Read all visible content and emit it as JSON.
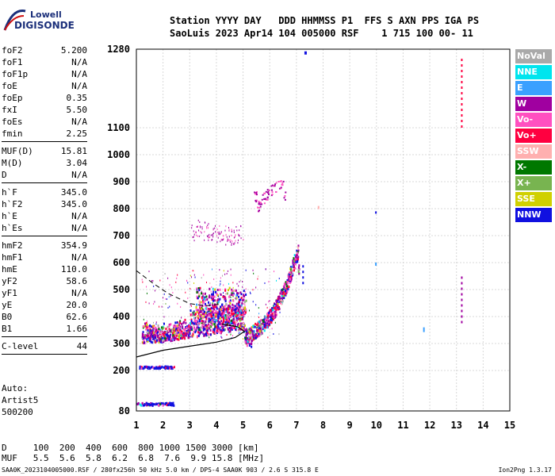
{
  "logo": {
    "line1": "Lowell",
    "line2": "DIGISONDE"
  },
  "header": {
    "labels": "Station YYYY DAY   DDD HHMMSS P1  FFS S AXN PPS IGA PS",
    "values": "SaoLuis 2023 Apr14 104 005000 RSF    1 715 100 00- 11"
  },
  "params": [
    {
      "k": "foF2",
      "v": "5.200"
    },
    {
      "k": "foF1",
      "v": "N/A"
    },
    {
      "k": "foF1p",
      "v": "N/A"
    },
    {
      "k": "foE",
      "v": "N/A"
    },
    {
      "k": "foEp",
      "v": "0.35"
    },
    {
      "k": "fxI",
      "v": "5.50"
    },
    {
      "k": "foEs",
      "v": "N/A"
    },
    {
      "k": "fmin",
      "v": "2.25"
    },
    {
      "sep": true
    },
    {
      "k": "MUF(D)",
      "v": "15.81"
    },
    {
      "k": "M(D)",
      "v": "3.04"
    },
    {
      "k": "D",
      "v": "N/A"
    },
    {
      "sep": true
    },
    {
      "k": "h`F",
      "v": "345.0"
    },
    {
      "k": "h`F2",
      "v": "345.0"
    },
    {
      "k": "h`E",
      "v": "N/A"
    },
    {
      "k": "h`Es",
      "v": "N/A"
    },
    {
      "sep": true
    },
    {
      "k": "hmF2",
      "v": "354.9"
    },
    {
      "k": "hmF1",
      "v": "N/A"
    },
    {
      "k": "hmE",
      "v": "110.0"
    },
    {
      "k": "yF2",
      "v": "58.6"
    },
    {
      "k": "yF1",
      "v": "N/A"
    },
    {
      "k": "yE",
      "v": "20.0"
    },
    {
      "k": "B0",
      "v": "62.6"
    },
    {
      "k": "B1",
      "v": "1.66"
    },
    {
      "sep": true
    },
    {
      "k": "C-level",
      "v": "44"
    },
    {
      "sep": true
    }
  ],
  "auto": [
    "Auto:",
    "Artist5",
    "500200"
  ],
  "dmuf": {
    "d_row": "D     100  200  400  600  800 1000 1500 3000 [km]",
    "muf_row": "MUF   5.5  5.6  5.8  6.2  6.8  7.6  9.9 15.8 [MHz]"
  },
  "footer": "SAA0K_2023104005000.RSF / 280fx256h 50 kHz 5.0 km / DPS-4 SAA0K 903 / 2.6 S 315.8 E",
  "version": "Ion2Png 1.3.17",
  "legend": [
    {
      "label": "NoVal",
      "color": "#a9a9a9"
    },
    {
      "label": "NNE",
      "color": "#00e5ee"
    },
    {
      "label": "E",
      "color": "#3aa0ff"
    },
    {
      "label": "W",
      "color": "#a000a0"
    },
    {
      "label": "Vo-",
      "color": "#ff50c0"
    },
    {
      "label": "Vo+",
      "color": "#ff0040"
    },
    {
      "label": "SSW",
      "color": "#ffb0b0"
    },
    {
      "label": "X-",
      "color": "#007800"
    },
    {
      "label": "X+",
      "color": "#78b450"
    },
    {
      "label": "SSE",
      "color": "#d0d000"
    },
    {
      "label": "NNW",
      "color": "#1010e0"
    }
  ],
  "chart_data": {
    "type": "scatter",
    "title": "",
    "xlabel": "",
    "ylabel": "",
    "xlim": [
      1,
      15
    ],
    "ylim": [
      80,
      1280
    ],
    "x_ticks": [
      1,
      2,
      3,
      4,
      5,
      6,
      7,
      8,
      9,
      10,
      11,
      12,
      13,
      14,
      15
    ],
    "y_ticks": [
      80,
      200,
      300,
      400,
      500,
      600,
      700,
      800,
      900,
      1000,
      1100,
      1280
    ],
    "y_tick_labels": [
      "80",
      "200",
      "300",
      "400",
      "500",
      "600",
      "700",
      "800",
      "900",
      "1000",
      "1100",
      "1280"
    ],
    "grid": true,
    "o_trace_top": [
      [
        5.05,
        355
      ],
      [
        5.3,
        368
      ],
      [
        5.6,
        388
      ],
      [
        5.9,
        418
      ],
      [
        6.2,
        460
      ],
      [
        6.5,
        520
      ],
      [
        6.7,
        570
      ],
      [
        6.9,
        630
      ],
      [
        7.05,
        675
      ]
    ],
    "o_trace_bottom": [
      [
        1.2,
        305
      ],
      [
        2,
        310
      ],
      [
        3,
        325
      ],
      [
        4,
        340
      ],
      [
        5,
        356
      ]
    ],
    "f_cusp_low": [
      [
        3.3,
        480
      ],
      [
        3.6,
        470
      ],
      [
        4,
        465
      ],
      [
        4.4,
        470
      ],
      [
        4.8,
        480
      ],
      [
        5.0,
        495
      ]
    ],
    "cloud_mid": [
      [
        3.2,
        720
      ],
      [
        3.5,
        710
      ],
      [
        4,
        700
      ],
      [
        4.5,
        690
      ],
      [
        4.9,
        700
      ]
    ],
    "upper_trace": [
      [
        5.5,
        800
      ],
      [
        5.8,
        840
      ],
      [
        6.1,
        870
      ],
      [
        6.5,
        895
      ]
    ],
    "low_clusters": [
      {
        "x0": 1.0,
        "x1": 2.4,
        "y": 103
      },
      {
        "x0": 1.1,
        "x1": 2.4,
        "y": 215
      }
    ],
    "spikes": [
      {
        "x": 7.25,
        "y0": 520,
        "y1": 600,
        "color": "#1010e0"
      },
      {
        "x": 13.2,
        "y0": 1100,
        "y1": 1260,
        "color": "#ff0040"
      },
      {
        "x": 13.2,
        "y0": 375,
        "y1": 550,
        "color": "#a000a0"
      }
    ],
    "profile_curve": [
      [
        1,
        250
      ],
      [
        2,
        275
      ],
      [
        3,
        290
      ],
      [
        4,
        305
      ],
      [
        4.7,
        322
      ],
      [
        5.05,
        345
      ],
      [
        4.8,
        362
      ],
      [
        4.2,
        372
      ]
    ],
    "dashed_curve": [
      [
        1,
        570
      ],
      [
        1.6,
        525
      ],
      [
        2.2,
        485
      ],
      [
        3,
        448
      ],
      [
        3.6,
        440
      ],
      [
        4.1,
        445
      ]
    ]
  }
}
